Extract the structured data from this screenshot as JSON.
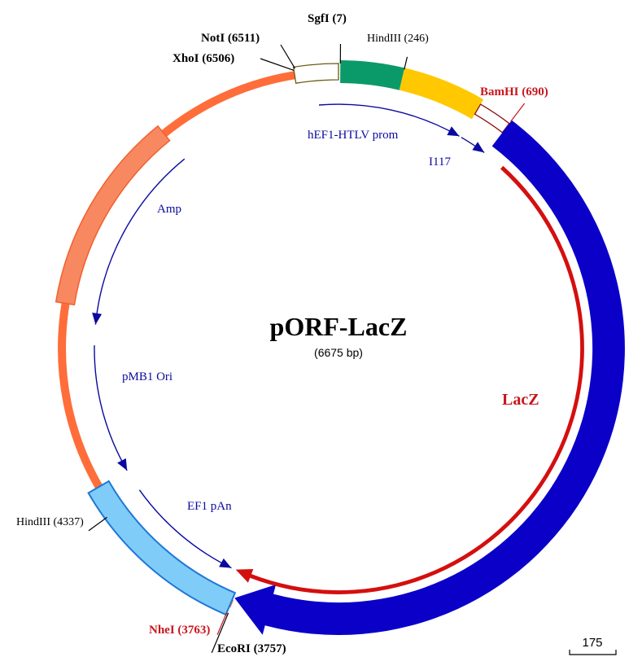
{
  "plasmid": {
    "name": "pORF-LacZ",
    "size_label": "(6675 bp)",
    "total_bp": 6675
  },
  "features": {
    "lacz": {
      "label": "LacZ",
      "start_bp": 690,
      "end_bp": 3757,
      "color": "#0a00c8"
    },
    "lacz_inner": {
      "start_bp": 780,
      "end_bp": 3800,
      "color": "#d40f0f"
    },
    "nhe_block": {
      "start_bp": 3763,
      "end_bp": 4450,
      "color": "#80ccf8",
      "stroke": "#1e78d8"
    },
    "amp_block": {
      "start_bp": 5180,
      "end_bp": 5950,
      "color": "#f88860",
      "stroke": "#f06030"
    },
    "outer_arc": {
      "start_bp": 3757,
      "end_bp": 6506,
      "color": "#ff6d3a"
    },
    "mcs_block": {
      "start_bp": 6506,
      "end_bp": 6675,
      "color": "#ffffff",
      "stroke": "#6b5a12"
    },
    "green_block": {
      "start_bp": 7,
      "end_bp": 246,
      "color": "#0a9a6a"
    },
    "yellow_block": {
      "start_bp": 246,
      "end_bp": 560,
      "color": "#ffc800"
    },
    "i117_block": {
      "start_bp": 560,
      "end_bp": 690,
      "color": "#ffffff",
      "stroke": "#8b1010"
    }
  },
  "inner_features": {
    "hef1": {
      "label": "hEF1-HTLV prom",
      "start_bp": 6590,
      "end_bp": 550,
      "color": "#0a0aa0"
    },
    "i117": {
      "label": "I117",
      "start_bp": 560,
      "end_bp": 680,
      "color": "#0a0aa0"
    },
    "amp": {
      "label": "Amp",
      "start_bp": 5950,
      "end_bp": 5110,
      "color": "#0a0aa0"
    },
    "pmb1": {
      "label": "pMB1 Ori",
      "start_bp": 5020,
      "end_bp": 4450,
      "color": "#0a0aa0"
    },
    "ef1pan": {
      "label": "EF1 pAn",
      "start_bp": 4350,
      "end_bp": 3820,
      "color": "#0a0aa0"
    }
  },
  "sites": {
    "sgfi": {
      "label": "SgfI  (7)",
      "bp": 7,
      "color": "#000000"
    },
    "hindiii_246": {
      "label": "HindIII (246)",
      "bp": 246,
      "color": "#000000"
    },
    "noti": {
      "label": "NotI  (6511)",
      "bp": 6511,
      "color": "#000000"
    },
    "xhoi": {
      "label": "XhoI  (6506)",
      "bp": 6506,
      "color": "#000000"
    },
    "bamhi": {
      "label": "BamHI  (690)",
      "bp": 690,
      "color": "#c8161d"
    },
    "hindiii_4337": {
      "label": "HindIII (4337)",
      "bp": 4337,
      "color": "#000000"
    },
    "nhei": {
      "label": "NheI  (3763)",
      "bp": 3763,
      "color": "#c8161d"
    },
    "ecori": {
      "label": "EcoRI  (3757)",
      "bp": 3757,
      "color": "#000000"
    }
  },
  "scale_bar": {
    "label": "175"
  }
}
